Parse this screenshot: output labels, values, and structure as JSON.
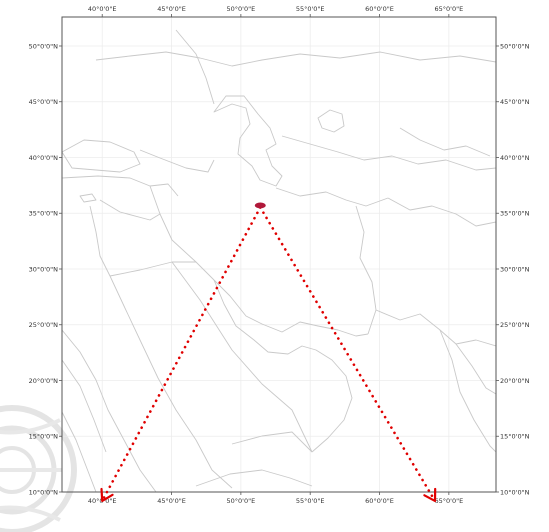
{
  "map": {
    "extent": {
      "lon_min": 37.1,
      "lon_max": 68.4,
      "lat_min": 10,
      "lat_max": 52.6
    },
    "graticule": {
      "lon_ticks": [
        {
          "value": 40,
          "label": "40°0'0\"E"
        },
        {
          "value": 45,
          "label": "45°0'0\"E"
        },
        {
          "value": 50,
          "label": "50°0'0\"E"
        },
        {
          "value": 55,
          "label": "55°0'0\"E"
        },
        {
          "value": 60,
          "label": "60°0'0\"E"
        },
        {
          "value": 65,
          "label": "65°0'0\"E"
        }
      ],
      "lat_ticks": [
        {
          "value": 50,
          "label": "50°0'0\"N"
        },
        {
          "value": 45,
          "label": "45°0'0\"N"
        },
        {
          "value": 40,
          "label": "40°0'0\"N"
        },
        {
          "value": 35,
          "label": "35°0'0\"N"
        },
        {
          "value": 30,
          "label": "30°0'0\"N"
        },
        {
          "value": 25,
          "label": "25°0'0\"N"
        },
        {
          "value": 20,
          "label": "20°0'0\"N"
        },
        {
          "value": 15,
          "label": "15°0'0\"N"
        },
        {
          "value": 10,
          "label": "10°0'0\"N"
        }
      ]
    },
    "source_point": {
      "lon": 51.4,
      "lat": 35.7,
      "color": "#b0183a"
    },
    "arrows": [
      {
        "name": "arrow-southwest",
        "to": {
          "lon": 40.0,
          "lat": 9.2
        }
      },
      {
        "name": "arrow-southeast",
        "to": {
          "lon": 64.0,
          "lat": 9.2
        }
      }
    ],
    "arrow_color": "#e00000",
    "border_color": "#c8c8c8",
    "frame_color": "#555555",
    "watermark_color": "#e0e0e0"
  }
}
